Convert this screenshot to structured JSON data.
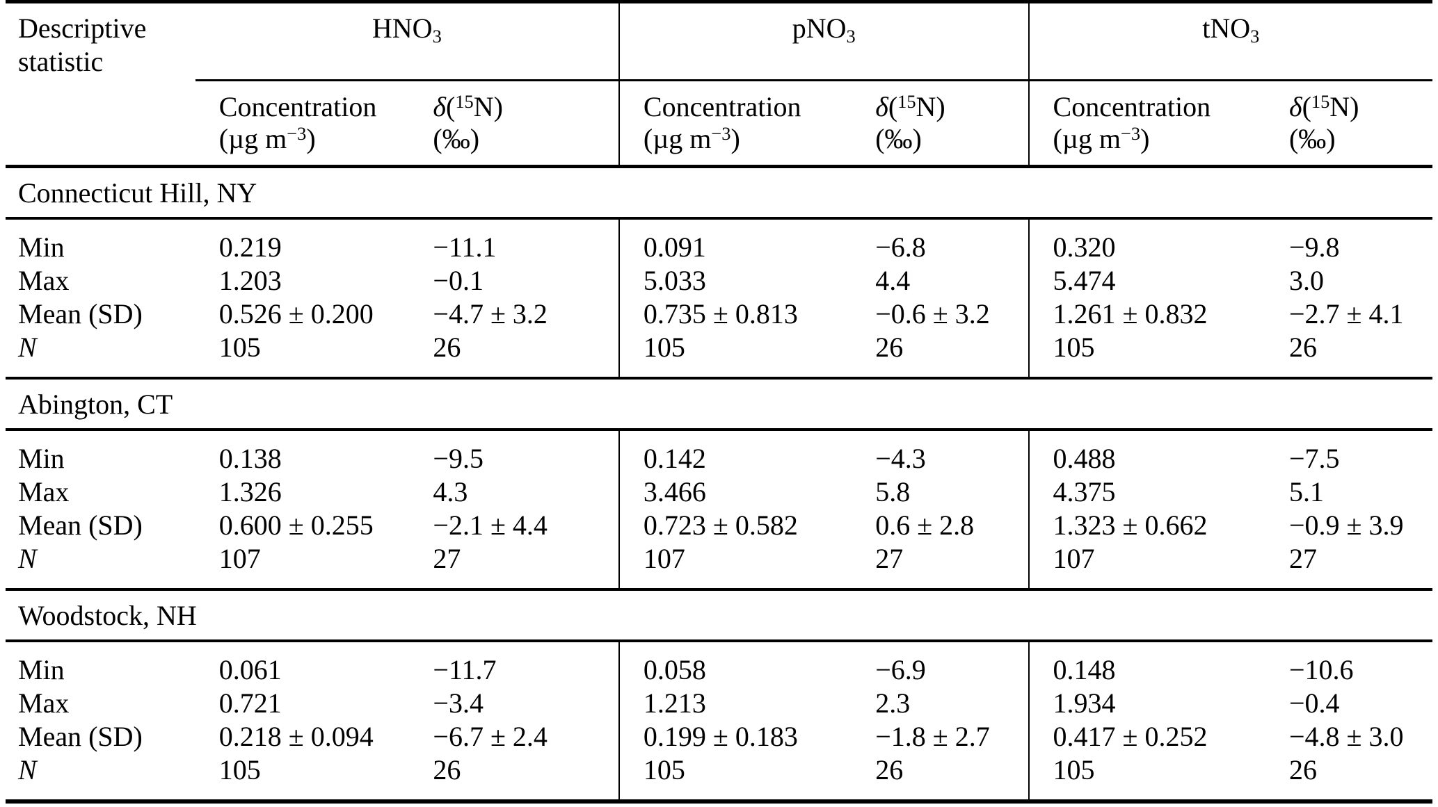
{
  "table": {
    "corner": {
      "line1": "Descriptive",
      "line2": "statistic"
    },
    "groups": [
      {
        "base": "HNO",
        "sub": "3"
      },
      {
        "base": "pNO",
        "sub": "3"
      },
      {
        "base": "tNO",
        "sub": "3"
      }
    ],
    "subheader": {
      "concentration": {
        "title": "Concentration",
        "unit_pre": "(µg m",
        "unit_sup": "−3",
        "unit_post": ")"
      },
      "delta": {
        "symbol": "δ",
        "open": "(",
        "sup": "15",
        "close": "N)",
        "unit": "(‰)"
      }
    },
    "sections": [
      {
        "title": "Connecticut Hill, NY",
        "rows": [
          {
            "label": "Min",
            "values": [
              "0.219",
              "−11.1",
              "0.091",
              "−6.8",
              "0.320",
              "−9.8"
            ]
          },
          {
            "label": "Max",
            "values": [
              "1.203",
              "−0.1",
              "5.033",
              "4.4",
              "5.474",
              "3.0"
            ]
          },
          {
            "label": "Mean (SD)",
            "values": [
              "0.526 ± 0.200",
              "−4.7 ± 3.2",
              "0.735 ± 0.813",
              "−0.6 ± 3.2",
              "1.261 ± 0.832",
              "−2.7 ± 4.1"
            ]
          },
          {
            "label": "N",
            "values": [
              "105",
              "26",
              "105",
              "26",
              "105",
              "26"
            ]
          }
        ]
      },
      {
        "title": "Abington, CT",
        "rows": [
          {
            "label": "Min",
            "values": [
              "0.138",
              "−9.5",
              "0.142",
              "−4.3",
              "0.488",
              "−7.5"
            ]
          },
          {
            "label": "Max",
            "values": [
              "1.326",
              "4.3",
              "3.466",
              "5.8",
              "4.375",
              "5.1"
            ]
          },
          {
            "label": "Mean (SD)",
            "values": [
              "0.600 ± 0.255",
              "−2.1 ± 4.4",
              "0.723 ± 0.582",
              "0.6 ± 2.8",
              "1.323 ± 0.662",
              "−0.9 ± 3.9"
            ]
          },
          {
            "label": "N",
            "values": [
              "107",
              "27",
              "107",
              "27",
              "107",
              "27"
            ]
          }
        ]
      },
      {
        "title": "Woodstock, NH",
        "rows": [
          {
            "label": "Min",
            "values": [
              "0.061",
              "−11.7",
              "0.058",
              "−6.9",
              "0.148",
              "−10.6"
            ]
          },
          {
            "label": "Max",
            "values": [
              "0.721",
              "−3.4",
              "1.213",
              "2.3",
              "1.934",
              "−0.4"
            ]
          },
          {
            "label": "Mean (SD)",
            "values": [
              "0.218 ± 0.094",
              "−6.7 ± 2.4",
              "0.199 ± 0.183",
              "−1.8 ± 2.7",
              "0.417 ± 0.252",
              "−4.8 ± 3.0"
            ]
          },
          {
            "label": "N",
            "values": [
              "105",
              "26",
              "105",
              "26",
              "105",
              "26"
            ]
          }
        ]
      }
    ]
  }
}
